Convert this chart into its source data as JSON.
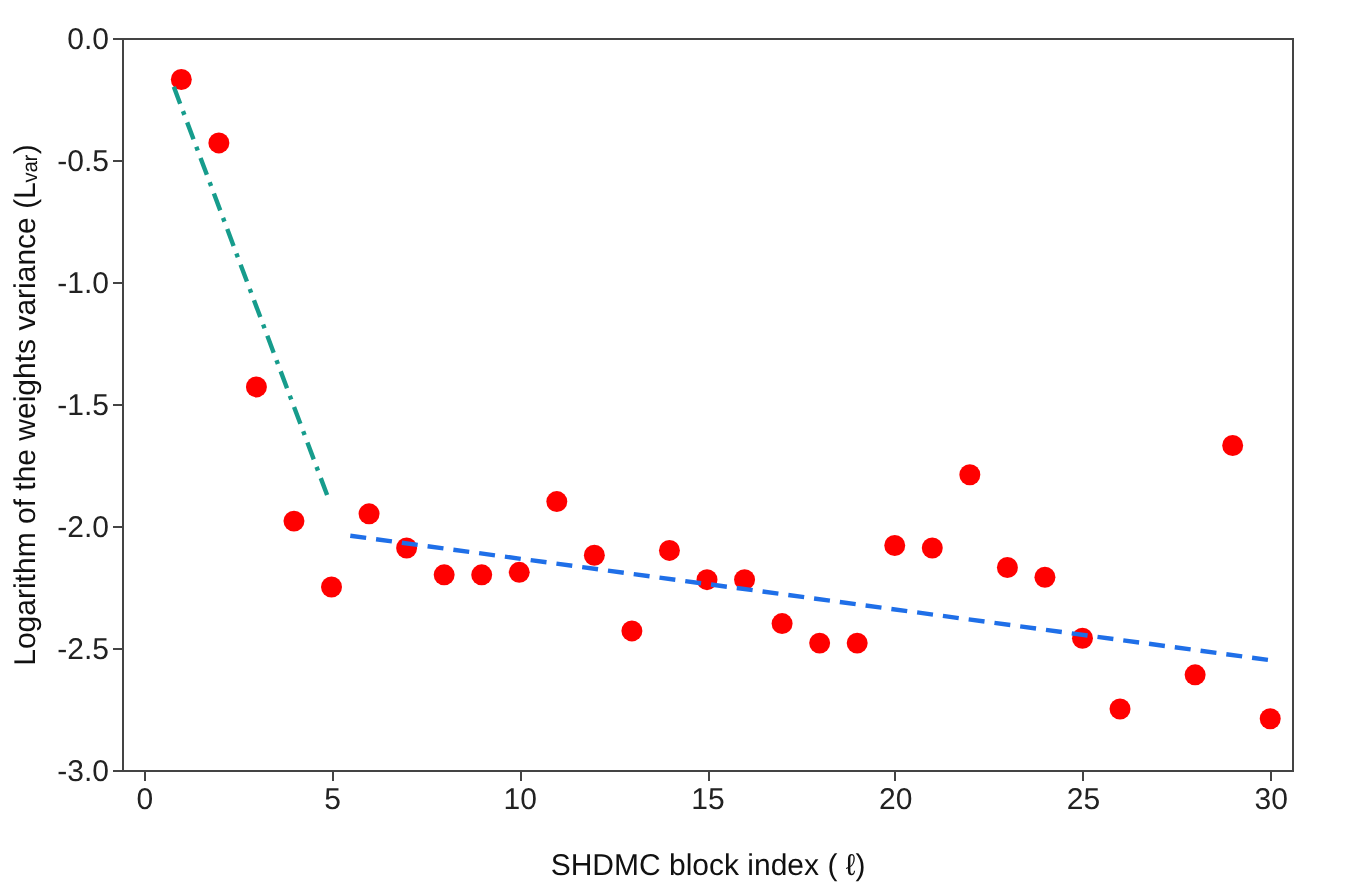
{
  "chart_data": {
    "type": "scatter",
    "xlabel": "SHDMC block index ( ℓ)",
    "ylabel": "Logarithm of the weights variance (Lᵥₐᵣ)",
    "xlim": [
      -0.58,
      30.58
    ],
    "xticks": [
      0,
      5,
      10,
      15,
      20,
      25,
      30
    ],
    "ylim": [
      -3.0,
      0.0
    ],
    "yticks": [
      {
        "value": -3.0,
        "label": "-3.0"
      },
      {
        "value": -2.5,
        "label": "-2.5"
      },
      {
        "value": -2.0,
        "label": "-2.0"
      },
      {
        "value": -1.5,
        "label": "-1.5"
      },
      {
        "value": -1.0,
        "label": "-1.0"
      },
      {
        "value": -0.5,
        "label": "-0.5"
      },
      {
        "value": 0.0,
        "label": "0.0"
      }
    ],
    "grid": false,
    "series": [
      {
        "color": "#ff0000",
        "marker": "circle",
        "x": [
          1,
          2,
          3,
          4,
          5,
          6,
          7,
          8,
          9,
          10,
          11,
          12,
          13,
          14,
          15,
          16,
          17,
          18,
          19,
          20,
          21,
          22,
          23,
          24,
          25,
          26,
          28,
          29,
          30
        ],
        "values": [
          -0.17,
          -0.43,
          -1.43,
          -1.98,
          -2.25,
          -1.95,
          -2.09,
          -2.2,
          -2.2,
          -2.19,
          -1.9,
          -2.12,
          -2.43,
          -2.1,
          -2.22,
          -2.22,
          -2.4,
          -2.48,
          -2.48,
          -2.08,
          -2.09,
          -1.79,
          -2.17,
          -2.21,
          -2.46,
          -2.75,
          -2.61,
          -1.67,
          -2.79
        ]
      },
      {
        "type": "line",
        "marker": "none",
        "color": "#169c8c",
        "line_style": "dotted",
        "x": [
          0.8,
          4.9
        ],
        "values": [
          -0.2,
          -1.88
        ]
      },
      {
        "type": "line",
        "marker": "none",
        "color": "#1f6fe8",
        "line_style": "dashed",
        "x": [
          5.5,
          30
        ],
        "values": [
          -2.04,
          -2.55
        ]
      }
    ]
  }
}
